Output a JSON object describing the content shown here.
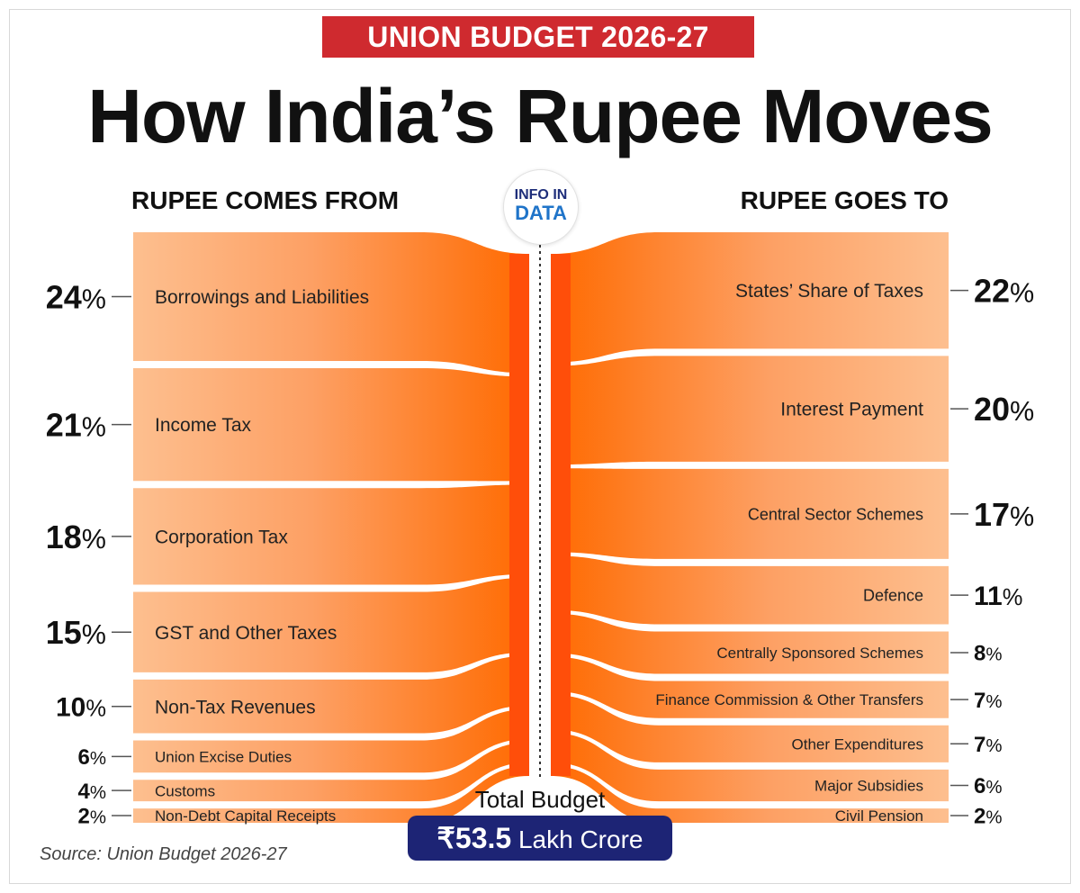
{
  "header": {
    "banner": "UNION BUDGET 2026-27",
    "title": "How India’s Rupee Moves",
    "left_heading": "RUPEE COMES FROM",
    "right_heading": "RUPEE GOES TO",
    "logo_line1": "INFO IN",
    "logo_line2": "DATA"
  },
  "total": {
    "label": "Total Budget",
    "amount": "₹53.5",
    "unit": " Lakh Crore"
  },
  "source": "Source: Union Budget 2026-27",
  "colors": {
    "banner": "#cf2a2f",
    "band_light": "#fdbf8f",
    "band_dark": "#ff6a00",
    "center_bar": "#ff4e0a",
    "pill": "#1d2475"
  },
  "chart_data": {
    "type": "sankey",
    "sources": [
      {
        "label": "Borrowings and Liabilities",
        "value": 24,
        "pct_label": "24%"
      },
      {
        "label": "Income Tax",
        "value": 21,
        "pct_label": "21%"
      },
      {
        "label": "Corporation Tax",
        "value": 18,
        "pct_label": "18%"
      },
      {
        "label": "GST and Other Taxes",
        "value": 15,
        "pct_label": "15%"
      },
      {
        "label": "Non-Tax Revenues",
        "value": 10,
        "pct_label": "10%"
      },
      {
        "label": "Union Excise Duties",
        "value": 6,
        "pct_label": "6%"
      },
      {
        "label": "Customs",
        "value": 4,
        "pct_label": "4%"
      },
      {
        "label": "Non-Debt Capital Receipts",
        "value": 2,
        "pct_label": "2%"
      }
    ],
    "targets": [
      {
        "label": "States’ Share of Taxes",
        "value": 22,
        "pct_label": "22%"
      },
      {
        "label": "Interest Payment",
        "value": 20,
        "pct_label": "20%"
      },
      {
        "label": "Central Sector Schemes",
        "value": 17,
        "pct_label": "17%"
      },
      {
        "label": "Defence",
        "value": 11,
        "pct_label": "11%"
      },
      {
        "label": "Centrally Sponsored Schemes",
        "value": 8,
        "pct_label": "8%"
      },
      {
        "label": "Finance Commission & Other Transfers",
        "value": 7,
        "pct_label": "7%"
      },
      {
        "label": "Other Expenditures",
        "value": 7,
        "pct_label": "7%"
      },
      {
        "label": "Major Subsidies",
        "value": 6,
        "pct_label": "6%"
      },
      {
        "label": "Civil Pension",
        "value": 2,
        "pct_label": "2%"
      }
    ]
  }
}
